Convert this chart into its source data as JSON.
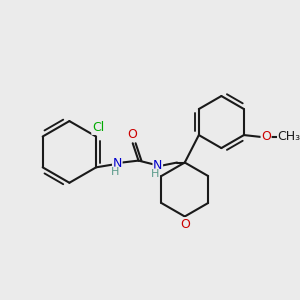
{
  "bg_color": "#ebebeb",
  "bond_color": "#1a1a1a",
  "bond_width": 1.5,
  "atom_colors": {
    "C": "#1a1a1a",
    "N": "#0000cc",
    "O": "#cc0000",
    "Cl": "#00aa00",
    "H": "#5a9a8a"
  },
  "font_size": 9,
  "fig_size": [
    3.0,
    3.0
  ],
  "dpi": 100,
  "xlim": [
    0,
    300
  ],
  "ylim": [
    0,
    300
  ]
}
